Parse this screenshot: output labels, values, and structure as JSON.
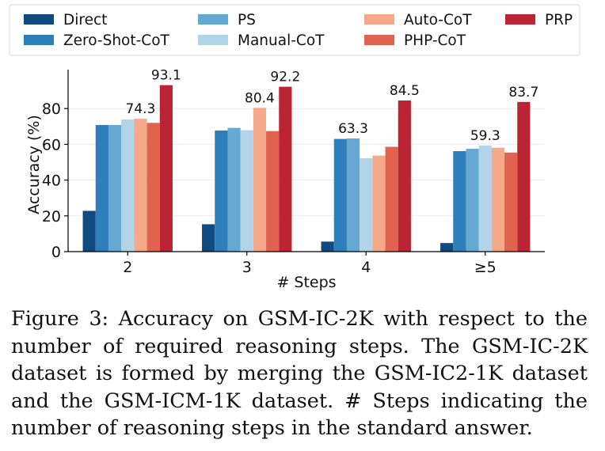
{
  "chart_data": {
    "type": "bar",
    "title": "",
    "xlabel": "# Steps",
    "ylabel": "Accuracy (%)",
    "ylim": [
      0,
      100
    ],
    "yticks": [
      0,
      20,
      40,
      60,
      80
    ],
    "categories": [
      "2",
      "3",
      "4",
      "≥5"
    ],
    "legend_position": "top",
    "series": [
      {
        "name": "Direct",
        "color": "#0f4a80",
        "values": [
          22.8,
          15.3,
          5.6,
          4.8
        ]
      },
      {
        "name": "Zero-Shot-CoT",
        "color": "#2f7ebc",
        "values": [
          70.8,
          67.7,
          63.0,
          56.2
        ]
      },
      {
        "name": "PS",
        "color": "#65a9d3",
        "values": [
          70.8,
          69.2,
          63.3,
          57.5
        ]
      },
      {
        "name": "Manual-CoT",
        "color": "#b2d4e8",
        "values": [
          73.9,
          67.9,
          52.2,
          59.3
        ]
      },
      {
        "name": "Auto-CoT",
        "color": "#f5a98a",
        "values": [
          74.3,
          80.4,
          53.7,
          58.1
        ]
      },
      {
        "name": "PHP-CoT",
        "color": "#e0634f",
        "values": [
          72.0,
          67.4,
          58.6,
          55.4
        ]
      },
      {
        "name": "PRP",
        "color": "#bb2433",
        "values": [
          93.1,
          92.2,
          84.5,
          83.7
        ]
      }
    ],
    "data_labels": [
      {
        "category": 0,
        "series": 4,
        "text": "74.3"
      },
      {
        "category": 0,
        "series": 6,
        "text": "93.1"
      },
      {
        "category": 1,
        "series": 4,
        "text": "80.4"
      },
      {
        "category": 1,
        "series": 6,
        "text": "92.2"
      },
      {
        "category": 2,
        "series": 2,
        "text": "63.3"
      },
      {
        "category": 2,
        "series": 6,
        "text": "84.5"
      },
      {
        "category": 3,
        "series": 3,
        "text": "59.3"
      },
      {
        "category": 3,
        "series": 6,
        "text": "83.7"
      }
    ]
  },
  "caption": "Figure 3: Accuracy on GSM-IC-2K with respect to the number of required reasoning steps. The GSM-IC-2K dataset is formed by merging the GSM-IC2-1K dataset and the GSM-ICM-1K dataset. # Steps indicating the number of reasoning steps in the standard answer."
}
